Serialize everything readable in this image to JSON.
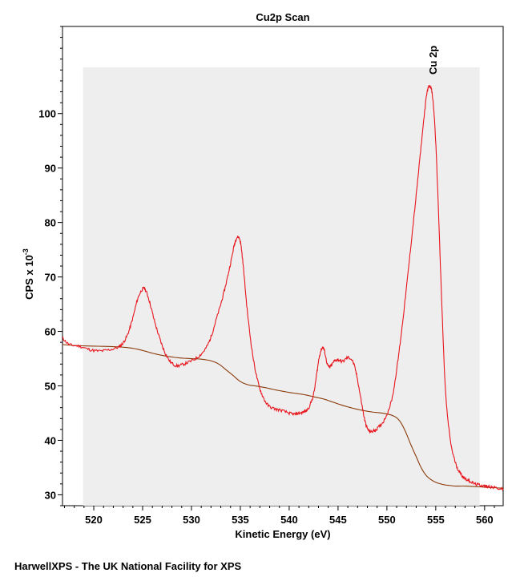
{
  "footer": "HarwellXPS - The UK National Facility for XPS",
  "chart_data": {
    "type": "line",
    "title": "Cu2p Scan",
    "xlabel": "Kinetic Energy (eV)",
    "ylabel": "CPS x 10",
    "ylabel_exponent": "-3",
    "xlim": [
      516.8,
      561.9
    ],
    "ylim": [
      28.0,
      116.0
    ],
    "x_ticks": [
      520,
      525,
      530,
      535,
      540,
      545,
      550,
      555,
      560
    ],
    "y_ticks": [
      30,
      40,
      50,
      60,
      70,
      80,
      90,
      100
    ],
    "x_minor_step": 1,
    "y_minor_step": 2,
    "region": {
      "x_start": 518.9,
      "x_end": 559.5,
      "y_top": 108.5
    },
    "annotations": [
      {
        "text": "Cu 2p",
        "x": 554.7,
        "y": 106
      }
    ],
    "grid": false,
    "legend": "none",
    "colors": {
      "spectrum": "#e8141c",
      "background": "#8b3a0a",
      "region_fill": "#eeeeee",
      "axis": "#000000"
    },
    "series": [
      {
        "role": "spectrum",
        "x": [
          516.8,
          517.5,
          518.5,
          519.5,
          520.5,
          521.5,
          522.5,
          523.0,
          523.5,
          524.0,
          524.5,
          525.0,
          525.3,
          525.7,
          526.2,
          526.7,
          527.2,
          527.8,
          528.5,
          529.2,
          530.0,
          530.8,
          531.5,
          532.0,
          532.5,
          533.0,
          533.5,
          534.0,
          534.4,
          534.7,
          535.0,
          535.3,
          535.7,
          536.2,
          536.7,
          537.2,
          537.8,
          538.5,
          539.2,
          540.0,
          540.5,
          541.0,
          541.5,
          542.0,
          542.5,
          542.8,
          543.1,
          543.4,
          543.6,
          543.9,
          544.2,
          544.6,
          545.0,
          545.5,
          546.0,
          546.5,
          546.9,
          547.3,
          547.7,
          548.0,
          548.3,
          548.7,
          549.2,
          549.8,
          550.5,
          551.0,
          551.5,
          552.0,
          552.5,
          553.0,
          553.5,
          554.0,
          554.3,
          554.6,
          554.9,
          555.2,
          555.6,
          556.0,
          556.5,
          557.0,
          557.5,
          558.0,
          558.5,
          559.0,
          559.5,
          560.0,
          560.5,
          561.0,
          561.9
        ],
        "y": [
          58.8,
          57.6,
          57.3,
          56.7,
          56.4,
          56.6,
          57.1,
          57.9,
          59.6,
          62.5,
          66.0,
          67.8,
          67.6,
          65.5,
          62.0,
          59.0,
          56.5,
          54.5,
          53.7,
          54.0,
          54.6,
          55.5,
          57.0,
          59.0,
          62.0,
          65.0,
          68.5,
          72.5,
          76.0,
          77.3,
          76.5,
          72.0,
          64.0,
          56.5,
          51.5,
          48.5,
          46.5,
          45.8,
          45.5,
          45.0,
          44.8,
          45.0,
          45.2,
          46.0,
          48.5,
          52.0,
          55.5,
          57.0,
          56.5,
          54.0,
          53.5,
          54.5,
          54.8,
          54.5,
          55.2,
          54.5,
          52.0,
          48.0,
          44.0,
          42.2,
          41.6,
          41.8,
          42.5,
          44.0,
          47.5,
          53.0,
          60.0,
          68.0,
          76.5,
          85.0,
          94.0,
          102.5,
          105.0,
          104.0,
          98.0,
          86.0,
          66.0,
          49.0,
          40.0,
          36.0,
          34.0,
          33.0,
          32.5,
          32.0,
          31.8,
          31.6,
          31.5,
          31.3,
          31.0
        ]
      },
      {
        "role": "background",
        "x": [
          516.8,
          518.0,
          520.0,
          522.0,
          523.0,
          524.0,
          525.0,
          526.0,
          527.0,
          528.0,
          529.0,
          530.0,
          531.0,
          532.0,
          532.8,
          533.5,
          534.2,
          535.0,
          535.8,
          536.5,
          537.5,
          538.5,
          540.0,
          541.5,
          542.5,
          543.5,
          544.5,
          545.5,
          546.5,
          547.5,
          548.5,
          549.5,
          550.5,
          551.2,
          551.8,
          552.5,
          553.0,
          553.5,
          554.0,
          554.5,
          555.0,
          555.5,
          556.0,
          556.5,
          557.0,
          558.0,
          559.0,
          560.0,
          561.9
        ],
        "y": [
          57.6,
          57.4,
          57.3,
          57.2,
          57.1,
          56.9,
          56.5,
          56.0,
          55.6,
          55.3,
          55.1,
          55.0,
          54.9,
          54.6,
          54.0,
          53.0,
          52.0,
          50.8,
          50.2,
          50.0,
          49.7,
          49.3,
          48.8,
          48.4,
          48.0,
          47.6,
          47.0,
          46.4,
          45.9,
          45.5,
          45.2,
          45.0,
          44.6,
          43.8,
          42.0,
          39.0,
          37.0,
          35.0,
          33.6,
          32.8,
          32.3,
          32.0,
          31.8,
          31.7,
          31.6,
          31.6,
          31.5,
          31.4,
          31.2
        ]
      }
    ]
  }
}
